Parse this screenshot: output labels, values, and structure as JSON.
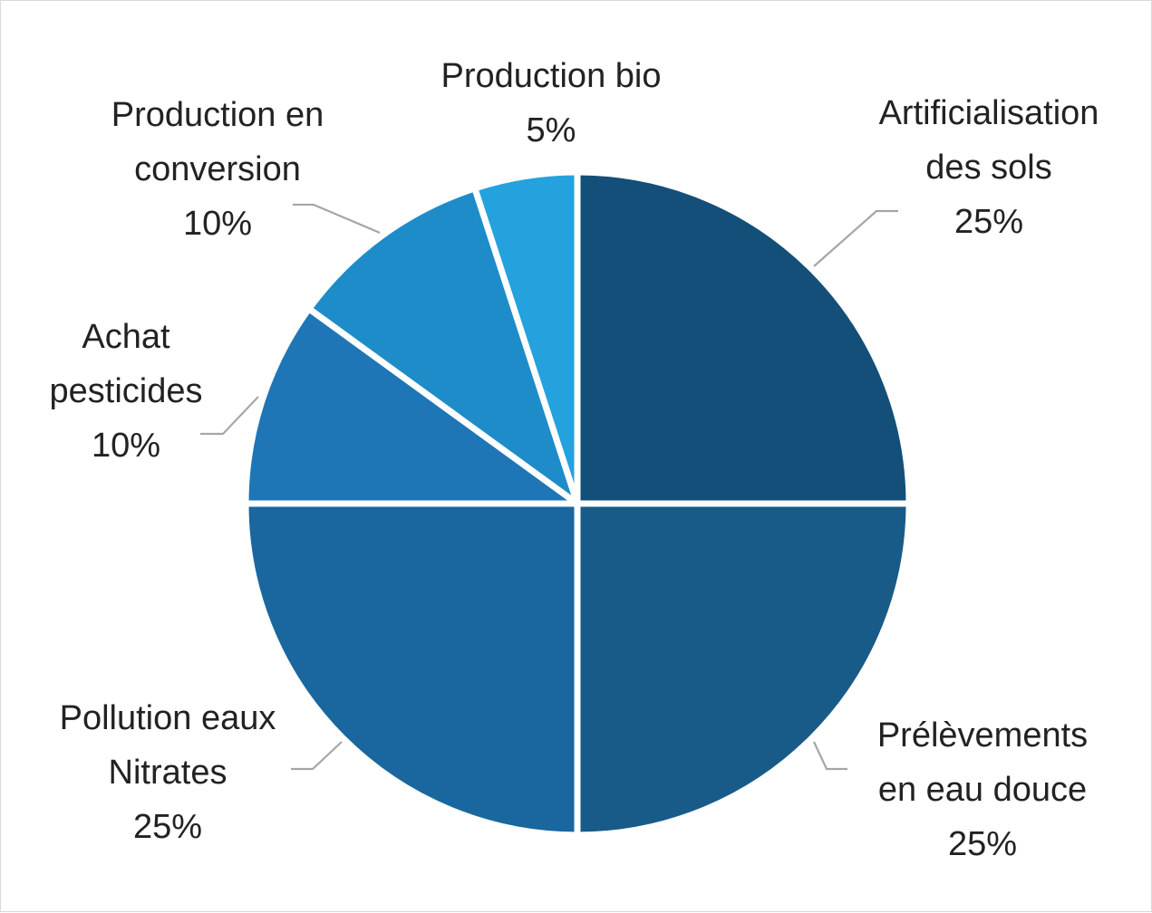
{
  "chart_data": {
    "type": "pie",
    "title": "",
    "start_angle_deg": 0,
    "direction": "clockwise",
    "slices": [
      {
        "label_lines": [
          "Artificialisation",
          "des sols"
        ],
        "value_label": "25%",
        "value": 25,
        "color": "#134f78"
      },
      {
        "label_lines": [
          "Prélèvements",
          "en eau douce"
        ],
        "value_label": "25%",
        "value": 25,
        "color": "#185b88"
      },
      {
        "label_lines": [
          "Pollution eaux",
          "Nitrates"
        ],
        "value_label": "25%",
        "value": 25,
        "color": "#19679e"
      },
      {
        "label_lines": [
          "Achat",
          "pesticides"
        ],
        "value_label": "10%",
        "value": 10,
        "color": "#1e76b6"
      },
      {
        "label_lines": [
          "Production en",
          "conversion"
        ],
        "value_label": "10%",
        "value": 10,
        "color": "#1e8cc9"
      },
      {
        "label_lines": [
          "Production bio"
        ],
        "value_label": "5%",
        "value": 5,
        "color": "#23a2dd"
      }
    ],
    "legend": "none",
    "leader_line_color": "#a6a6a6"
  }
}
